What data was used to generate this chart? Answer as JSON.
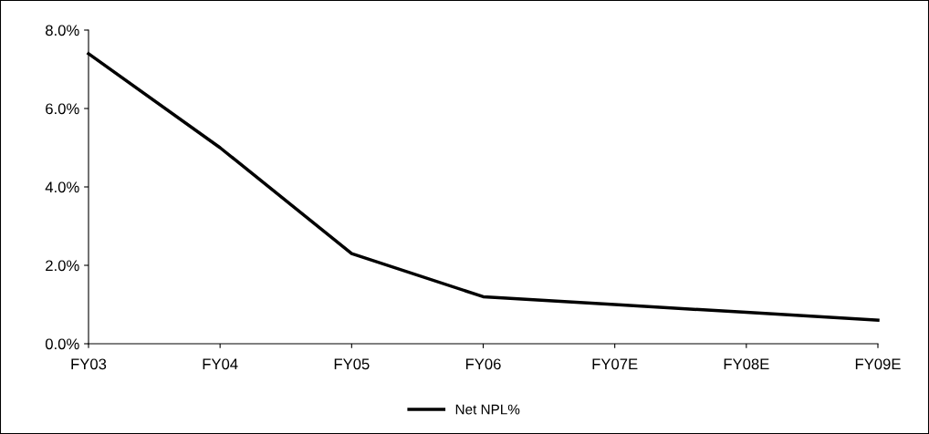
{
  "chart_data": {
    "type": "line",
    "categories": [
      "FY03",
      "FY04",
      "FY05",
      "FY06",
      "FY07E",
      "FY08E",
      "FY09E"
    ],
    "series": [
      {
        "name": "Net NPL%",
        "color": "#000000",
        "values": [
          7.4,
          5.0,
          2.3,
          1.2,
          1.0,
          0.8,
          0.6
        ]
      }
    ],
    "ylim": [
      0,
      8
    ],
    "yticks": [
      {
        "value": 0,
        "label": "0.0%"
      },
      {
        "value": 2,
        "label": "2.0%"
      },
      {
        "value": 4,
        "label": "4.0%"
      },
      {
        "value": 6,
        "label": "6.0%"
      },
      {
        "value": 8,
        "label": "8.0%"
      }
    ],
    "grid": false,
    "legend": "bottom",
    "marker": "none",
    "line_style": "solid"
  }
}
